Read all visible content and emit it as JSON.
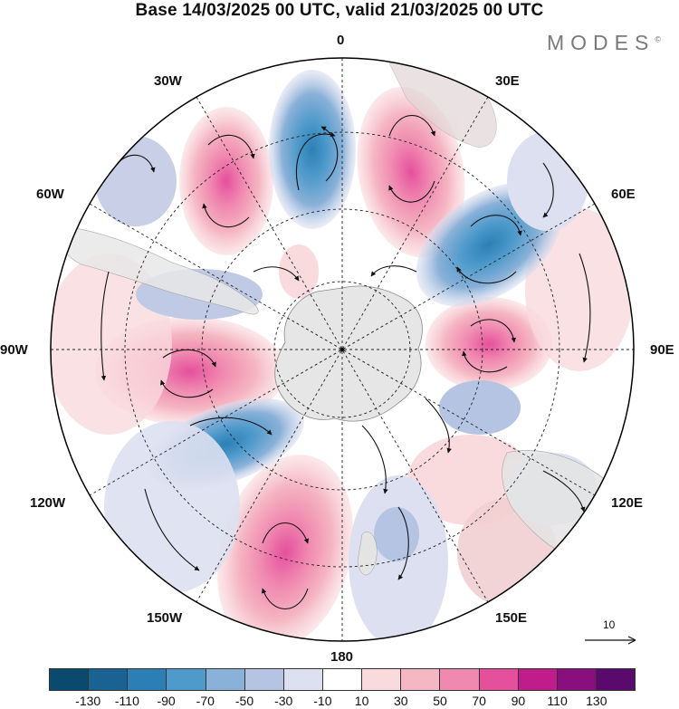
{
  "header": {
    "title": "Base 14/03/2025 00 UTC, valid 21/03/2025 00 UTC",
    "brand": "MODES",
    "brand_mark": "©"
  },
  "map": {
    "projection": "south-polar-stereographic",
    "longitude_labels": {
      "top": "0",
      "top_right": "30E",
      "upper_right": "60E",
      "right": "90E",
      "lower_right": "120E",
      "bottom_right": "150E",
      "bottom": "180",
      "bottom_left": "150W",
      "lower_left": "120W",
      "left": "90W",
      "upper_left": "60W",
      "top_left": "30W"
    },
    "vector_scale_label": "10"
  },
  "colorbar": {
    "labels": [
      "-130",
      "-110",
      "-90",
      "-70",
      "-50",
      "-30",
      "-10",
      "10",
      "30",
      "50",
      "70",
      "90",
      "110",
      "130"
    ],
    "colors": [
      "#0a4a6e",
      "#1a6291",
      "#2c7fb5",
      "#4e9acb",
      "#8ab1d8",
      "#b4c4e2",
      "#dde0f0",
      "#ffffff",
      "#f9dadd",
      "#f5b7c3",
      "#f089b0",
      "#e5509d",
      "#c01c8c",
      "#8a0f7e",
      "#5a0a6c"
    ]
  }
}
